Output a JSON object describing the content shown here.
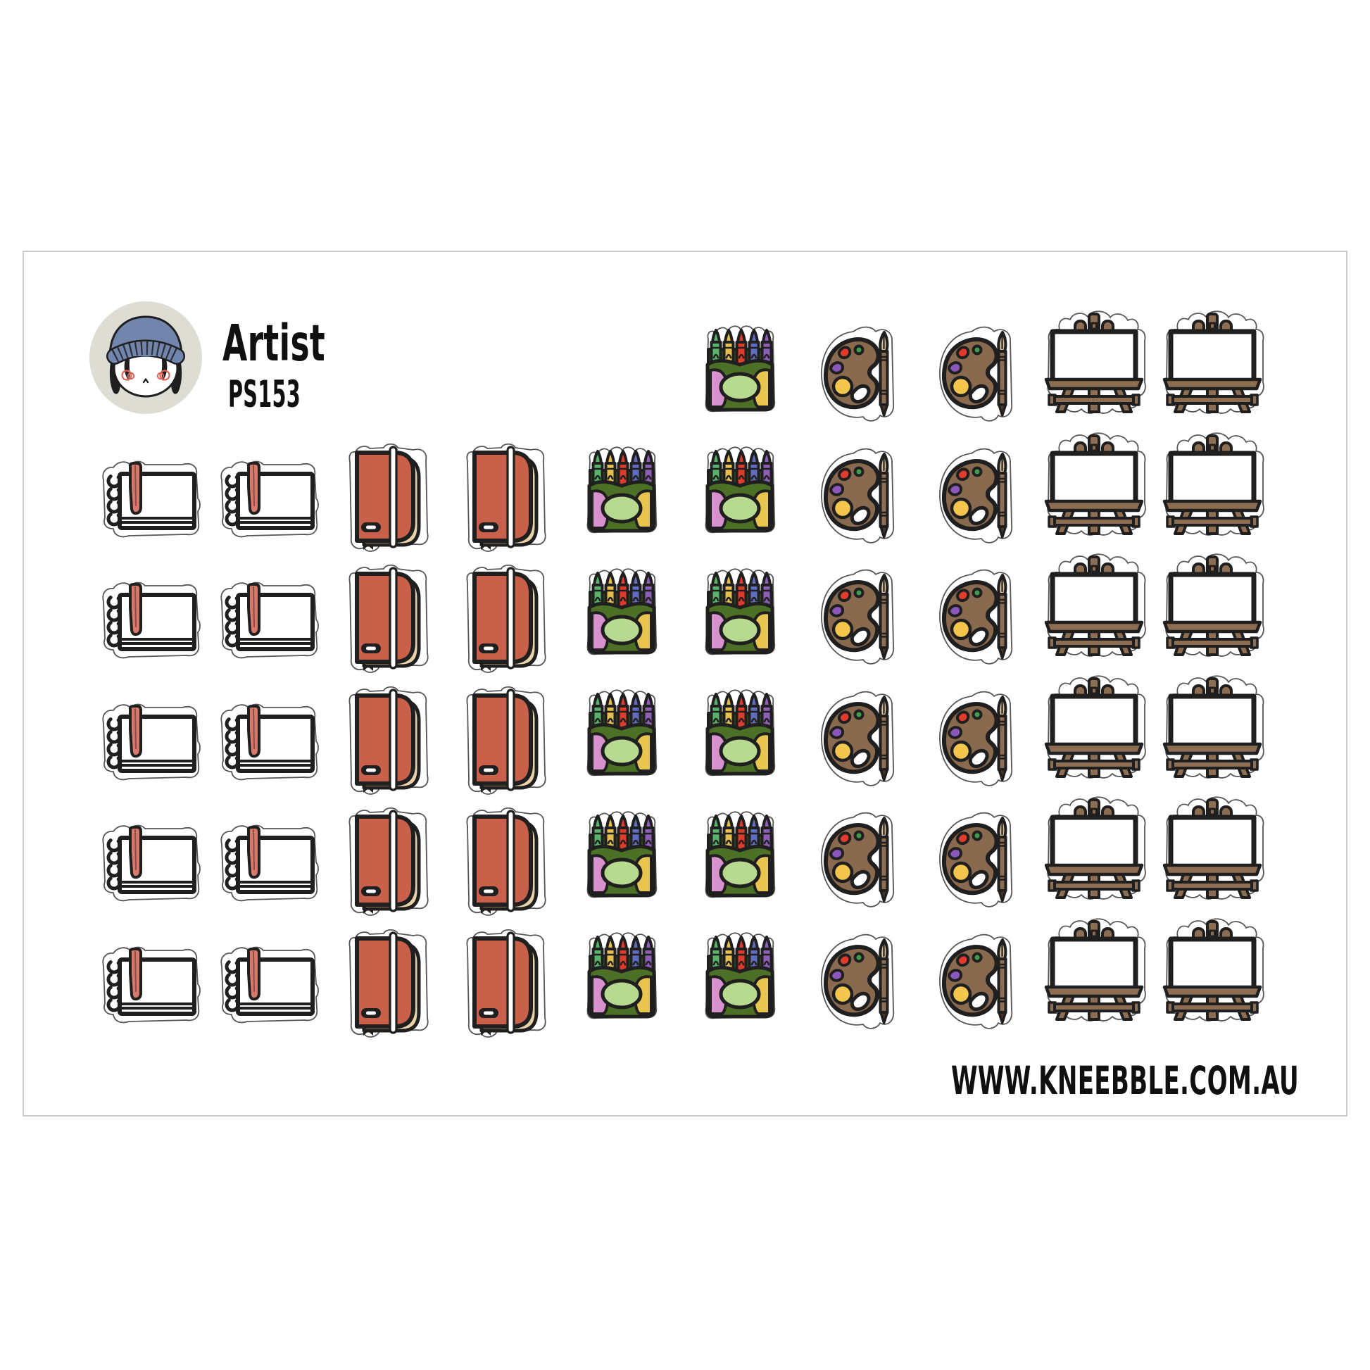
{
  "sheet": {
    "title": "Artist",
    "code": "PS153",
    "website": "WWW.KNEEBBLE.COM.AU"
  },
  "logo": {
    "icon": "kneebble-girl-avatar-icon"
  },
  "colors": {
    "sheet_border": "#cbcbcb",
    "diecut_outline": "#565656",
    "ink": "#1f1f1f",
    "bookmark_salmon": "#d8796b",
    "journal_cover": "#c96049",
    "journal_pages": "#e9d2a8",
    "crayon_green": "#58b269",
    "crayon_yellow": "#e5be4d",
    "crayon_red": "#dd3b2c",
    "crayon_blue": "#5f6cc0",
    "crayon_purple": "#8d5fb5",
    "box_green": "#4c7026",
    "box_green_dark": "#3c5a1c",
    "box_pink": "#d791cd",
    "box_yellow": "#e8c54f",
    "box_oval": "#b7da90",
    "palette_brown": "#8a6a4f",
    "paint_red": "#e23a2c",
    "paint_green": "#3f9e4d",
    "paint_purple": "#8b57ba",
    "paint_yellow": "#f4c64d",
    "brush_bristle": "#dbc39e",
    "wood_brown": "#8d6e53",
    "wood_dark": "#4a3626",
    "logo_bg": "#deddd3",
    "beanie_blue": "#7285ac",
    "cheek_red": "#e06155"
  },
  "stickers": {
    "counts": {
      "sketchbook": 10,
      "journal": 10,
      "crayon-box": 11,
      "palette": 12,
      "easel": 12,
      "total": 55
    },
    "rows": [
      [
        null,
        null,
        null,
        null,
        null,
        "crayon-box",
        "palette",
        "palette",
        "easel",
        "easel"
      ],
      [
        "sketchbook",
        "sketchbook",
        "journal",
        "journal",
        "crayon-box",
        "crayon-box",
        "palette",
        "palette",
        "easel",
        "easel"
      ],
      [
        "sketchbook",
        "sketchbook",
        "journal",
        "journal",
        "crayon-box",
        "crayon-box",
        "palette",
        "palette",
        "easel",
        "easel"
      ],
      [
        "sketchbook",
        "sketchbook",
        "journal",
        "journal",
        "crayon-box",
        "crayon-box",
        "palette",
        "palette",
        "easel",
        "easel"
      ],
      [
        "sketchbook",
        "sketchbook",
        "journal",
        "journal",
        "crayon-box",
        "crayon-box",
        "palette",
        "palette",
        "easel",
        "easel"
      ],
      [
        "sketchbook",
        "sketchbook",
        "journal",
        "journal",
        "crayon-box",
        "crayon-box",
        "palette",
        "palette",
        "easel",
        "easel"
      ]
    ]
  }
}
